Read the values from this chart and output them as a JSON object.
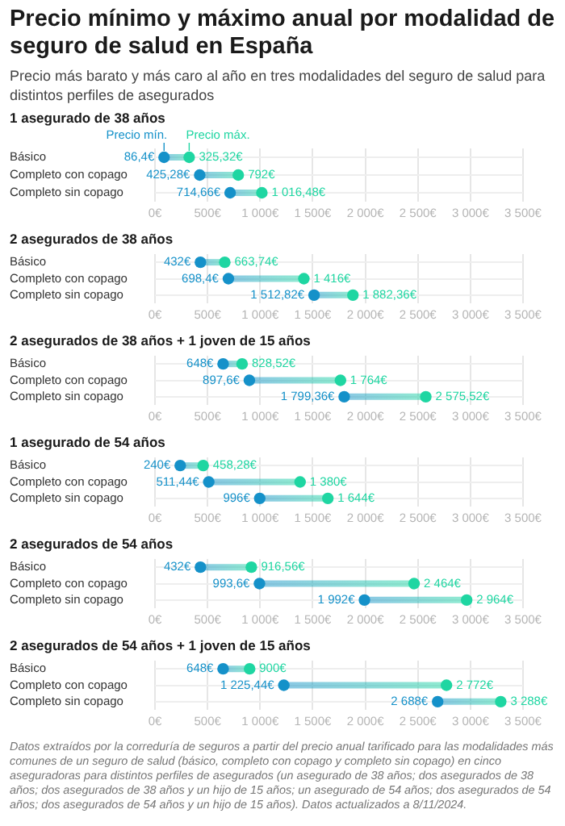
{
  "chart_data": [
    {
      "type": "other",
      "title": "Precio mínimo y máximo anual por modalidad de seguro de salud en España",
      "subtitle": "Precio más barato y más caro  al año en tres modalidades del seguro de salud para distintos perfiles de asegurados"
    },
    {
      "type": "scatter",
      "orientation": "horizontal",
      "title": "1 asegurado de 38 años",
      "categories": [
        "Básico",
        "Completo con copago",
        "Completo sin copago"
      ],
      "xlim": [
        0,
        3500
      ],
      "xticks": [
        {
          "value": 0,
          "label": "0€"
        },
        {
          "value": 500,
          "label": "500€"
        },
        {
          "value": 1000,
          "label": "1 000€"
        },
        {
          "value": 1500,
          "label": "1 500€"
        },
        {
          "value": 2000,
          "label": "2 000€"
        },
        {
          "value": 2500,
          "label": "2 500€"
        },
        {
          "value": 3000,
          "label": "3 000€"
        },
        {
          "value": 3500,
          "label": "3 500€"
        }
      ],
      "grid": true,
      "marker": "circle",
      "legend": false,
      "series": [
        {
          "name": "Precio mín.",
          "color": "#1591c9",
          "values": [
            86.4,
            425.28,
            714.66
          ],
          "value_labels": [
            "86,4€",
            "425,28€",
            "714,66€"
          ]
        },
        {
          "name": "Precio máx.",
          "color": "#1fd6a2",
          "values": [
            325.32,
            792,
            1016.48
          ],
          "value_labels": [
            "325,32€",
            "792€",
            "1 016,48€"
          ]
        }
      ]
    },
    {
      "type": "scatter",
      "orientation": "horizontal",
      "title": "2 asegurados de 38 años",
      "categories": [
        "Básico",
        "Completo con copago",
        "Completo sin copago"
      ],
      "xlim": [
        0,
        3500
      ],
      "xticks": [
        {
          "value": 0,
          "label": "0€"
        },
        {
          "value": 500,
          "label": "500€"
        },
        {
          "value": 1000,
          "label": "1 000€"
        },
        {
          "value": 1500,
          "label": "1 500€"
        },
        {
          "value": 2000,
          "label": "2 000€"
        },
        {
          "value": 2500,
          "label": "2 500€"
        },
        {
          "value": 3000,
          "label": "3 000€"
        },
        {
          "value": 3500,
          "label": "3 500€"
        }
      ],
      "grid": true,
      "marker": "circle",
      "legend": false,
      "series": [
        {
          "color": "#1591c9",
          "values": [
            432,
            698.4,
            1512.82
          ],
          "value_labels": [
            "432€",
            "698,4€",
            "1 512,82€"
          ]
        },
        {
          "color": "#1fd6a2",
          "values": [
            663.74,
            1416,
            1882.36
          ],
          "value_labels": [
            "663,74€",
            "1 416€",
            "1 882,36€"
          ]
        }
      ]
    },
    {
      "type": "scatter",
      "orientation": "horizontal",
      "title": "2 asegurados de 38 años + 1 joven de 15 años",
      "categories": [
        "Básico",
        "Completo con copago",
        "Completo sin copago"
      ],
      "xlim": [
        0,
        3500
      ],
      "xticks": [
        {
          "value": 0,
          "label": "0€"
        },
        {
          "value": 500,
          "label": "500€"
        },
        {
          "value": 1000,
          "label": "1 000€"
        },
        {
          "value": 1500,
          "label": "1 500€"
        },
        {
          "value": 2000,
          "label": "2 000€"
        },
        {
          "value": 2500,
          "label": "2 500€"
        },
        {
          "value": 3000,
          "label": "3 000€"
        },
        {
          "value": 3500,
          "label": "3 500€"
        }
      ],
      "grid": true,
      "marker": "circle",
      "legend": false,
      "series": [
        {
          "color": "#1591c9",
          "values": [
            648,
            897.6,
            1799.36
          ],
          "value_labels": [
            "648€",
            "897,6€",
            "1 799,36€"
          ]
        },
        {
          "color": "#1fd6a2",
          "values": [
            828.52,
            1764,
            2575.52
          ],
          "value_labels": [
            "828,52€",
            "1 764€",
            "2 575,52€"
          ]
        }
      ]
    },
    {
      "type": "scatter",
      "orientation": "horizontal",
      "title": "1 asegurado de 54 años",
      "categories": [
        "Básico",
        "Completo con copago",
        "Completo sin copago"
      ],
      "xlim": [
        0,
        3500
      ],
      "xticks": [
        {
          "value": 0,
          "label": "0€"
        },
        {
          "value": 500,
          "label": "500€"
        },
        {
          "value": 1000,
          "label": "1 000€"
        },
        {
          "value": 1500,
          "label": "1 500€"
        },
        {
          "value": 2000,
          "label": "2 000€"
        },
        {
          "value": 2500,
          "label": "2 500€"
        },
        {
          "value": 3000,
          "label": "3 000€"
        },
        {
          "value": 3500,
          "label": "3 500€"
        }
      ],
      "grid": true,
      "marker": "circle",
      "legend": false,
      "series": [
        {
          "color": "#1591c9",
          "values": [
            240,
            511.44,
            996
          ],
          "value_labels": [
            "240€",
            "511,44€",
            "996€"
          ]
        },
        {
          "color": "#1fd6a2",
          "values": [
            458.28,
            1380,
            1644
          ],
          "value_labels": [
            "458,28€",
            "1 380€",
            "1 644€"
          ]
        }
      ]
    },
    {
      "type": "scatter",
      "orientation": "horizontal",
      "title": "2 asegurados de 54 años",
      "categories": [
        "Básico",
        "Completo con copago",
        "Completo sin copago"
      ],
      "xlim": [
        0,
        3500
      ],
      "xticks": [
        {
          "value": 0,
          "label": "0€"
        },
        {
          "value": 500,
          "label": "500€"
        },
        {
          "value": 1000,
          "label": "1 000€"
        },
        {
          "value": 1500,
          "label": "1 500€"
        },
        {
          "value": 2000,
          "label": "2 000€"
        },
        {
          "value": 2500,
          "label": "2 500€"
        },
        {
          "value": 3000,
          "label": "3 000€"
        },
        {
          "value": 3500,
          "label": "3 500€"
        }
      ],
      "grid": true,
      "marker": "circle",
      "legend": false,
      "series": [
        {
          "color": "#1591c9",
          "values": [
            432,
            993.6,
            1992
          ],
          "value_labels": [
            "432€",
            "993,6€",
            "1 992€"
          ]
        },
        {
          "color": "#1fd6a2",
          "values": [
            916.56,
            2464,
            2964
          ],
          "value_labels": [
            "916,56€",
            "2 464€",
            "2 964€"
          ]
        }
      ]
    },
    {
      "type": "scatter",
      "orientation": "horizontal",
      "title": "2 asegurados de 54 años + 1 joven de 15 años",
      "categories": [
        "Básico",
        "Completo con copago",
        "Completo sin copago"
      ],
      "xlim": [
        0,
        3500
      ],
      "xticks": [
        {
          "value": 0,
          "label": "0€"
        },
        {
          "value": 500,
          "label": "500€"
        },
        {
          "value": 1000,
          "label": "1 000€"
        },
        {
          "value": 1500,
          "label": "1 500€"
        },
        {
          "value": 2000,
          "label": "2 000€"
        },
        {
          "value": 2500,
          "label": "2 500€"
        },
        {
          "value": 3000,
          "label": "3 000€"
        },
        {
          "value": 3500,
          "label": "3 500€"
        }
      ],
      "grid": true,
      "marker": "circle",
      "legend": false,
      "series": [
        {
          "color": "#1591c9",
          "values": [
            648,
            1225.44,
            2688
          ],
          "value_labels": [
            "648€",
            "1 225,44€",
            "2 688€"
          ]
        },
        {
          "color": "#1fd6a2",
          "values": [
            900,
            2772,
            3288
          ],
          "value_labels": [
            "900€",
            "2 772€",
            "3 288€"
          ]
        }
      ],
      "annotations": [
        "Datos extraídos por la correduría de seguros a partir del precio anual tarificado para las modalidades más comunes de un seguro de salud (básico, completo con copago y completo sin copago) en cinco aseguradoras para distintos perfiles de asegurados (un asegurado de 38 años; dos asegurados de 38 años; dos asegurados de 38 años y un hijo de 15 años; un asegurado de 54 años; dos asegurados de 54 años; dos asegurados de 54 años y un hijo de 15 años). Datos actualizados a 8/11/2024."
      ]
    }
  ]
}
